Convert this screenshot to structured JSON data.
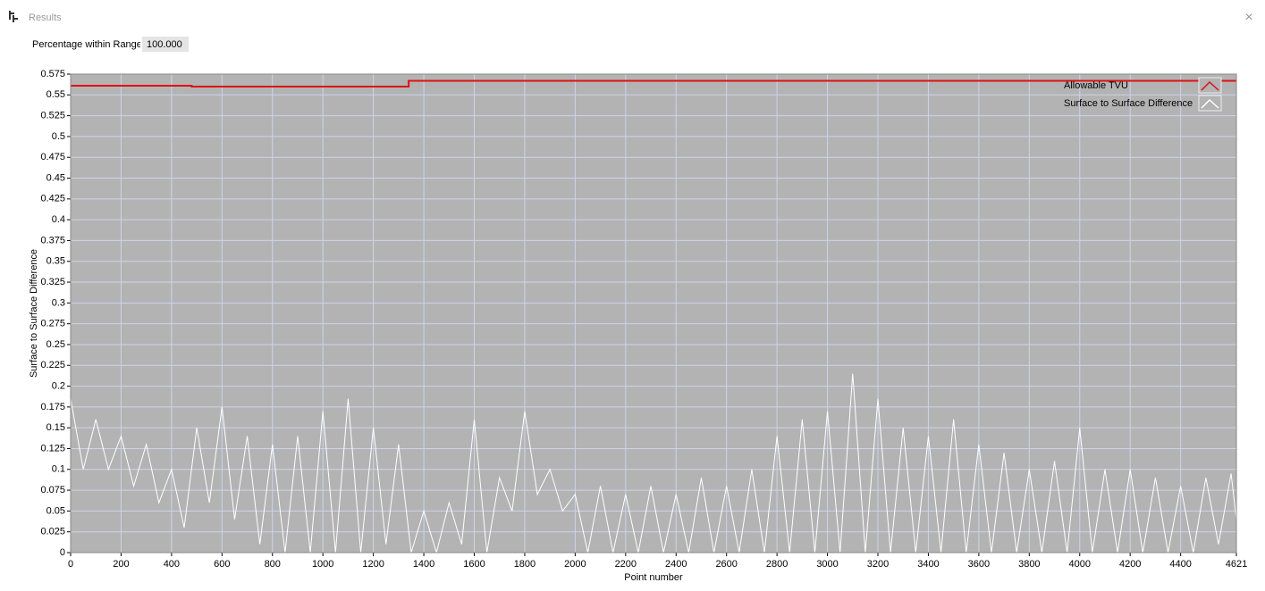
{
  "window": {
    "title": "Results",
    "close": "×"
  },
  "field": {
    "label": "Percentage within Range",
    "value": "100.000"
  },
  "chart_data": {
    "type": "line",
    "xlabel": "Point number",
    "ylabel": "Surface to Surface Difference",
    "xlim": [
      0,
      4621
    ],
    "ylim": [
      0,
      0.575
    ],
    "xticks": [
      0,
      200,
      400,
      600,
      800,
      1000,
      1200,
      1400,
      1600,
      1800,
      2000,
      2200,
      2400,
      2600,
      2800,
      3000,
      3200,
      3400,
      3600,
      3800,
      4000,
      4200,
      4400,
      4621
    ],
    "yticks": [
      0,
      0.025,
      0.05,
      0.075,
      0.1,
      0.125,
      0.15,
      0.175,
      0.2,
      0.225,
      0.25,
      0.275,
      0.3,
      0.325,
      0.35,
      0.375,
      0.4,
      0.425,
      0.45,
      0.475,
      0.5,
      0.525,
      0.55,
      0.575
    ],
    "grid": true,
    "legend": "upper right",
    "series": [
      {
        "name": "Allowable TVU",
        "color": "#e01010",
        "x": [
          0,
          480,
          480,
          1340,
          1340,
          4621
        ],
        "values": [
          0.561,
          0.561,
          0.56,
          0.56,
          0.567,
          0.567
        ]
      },
      {
        "name": "Surface to Surface Difference",
        "color": "#ffffff",
        "x": [
          0,
          50,
          100,
          150,
          200,
          250,
          300,
          350,
          400,
          450,
          500,
          550,
          600,
          650,
          700,
          750,
          800,
          850,
          900,
          950,
          1000,
          1050,
          1100,
          1150,
          1200,
          1250,
          1300,
          1350,
          1400,
          1450,
          1500,
          1550,
          1600,
          1650,
          1700,
          1750,
          1800,
          1850,
          1900,
          1950,
          2000,
          2050,
          2100,
          2150,
          2200,
          2250,
          2300,
          2350,
          2400,
          2450,
          2500,
          2550,
          2600,
          2650,
          2700,
          2750,
          2800,
          2850,
          2900,
          2950,
          3000,
          3050,
          3100,
          3150,
          3200,
          3250,
          3300,
          3350,
          3400,
          3450,
          3500,
          3550,
          3600,
          3650,
          3700,
          3750,
          3800,
          3850,
          3900,
          3950,
          4000,
          4050,
          4100,
          4150,
          4200,
          4250,
          4300,
          4350,
          4400,
          4450,
          4500,
          4550,
          4600,
          4621
        ],
        "values": [
          0.185,
          0.1,
          0.16,
          0.1,
          0.14,
          0.08,
          0.13,
          0.06,
          0.1,
          0.03,
          0.15,
          0.06,
          0.175,
          0.04,
          0.14,
          0.01,
          0.13,
          0,
          0.14,
          0,
          0.17,
          0,
          0.185,
          0,
          0.15,
          0.01,
          0.13,
          0,
          0.05,
          0,
          0.06,
          0.01,
          0.16,
          0,
          0.09,
          0.05,
          0.17,
          0.07,
          0.1,
          0.05,
          0.07,
          0,
          0.08,
          0,
          0.07,
          0,
          0.08,
          0,
          0.07,
          0,
          0.09,
          0,
          0.08,
          0,
          0.1,
          0,
          0.14,
          0,
          0.16,
          0,
          0.17,
          0,
          0.215,
          0,
          0.185,
          0,
          0.15,
          0,
          0.14,
          0,
          0.16,
          0,
          0.13,
          0,
          0.12,
          0,
          0.1,
          0,
          0.11,
          0,
          0.15,
          0,
          0.1,
          0,
          0.1,
          0,
          0.09,
          0,
          0.08,
          0,
          0.09,
          0.01,
          0.095,
          0.04
        ]
      }
    ]
  }
}
